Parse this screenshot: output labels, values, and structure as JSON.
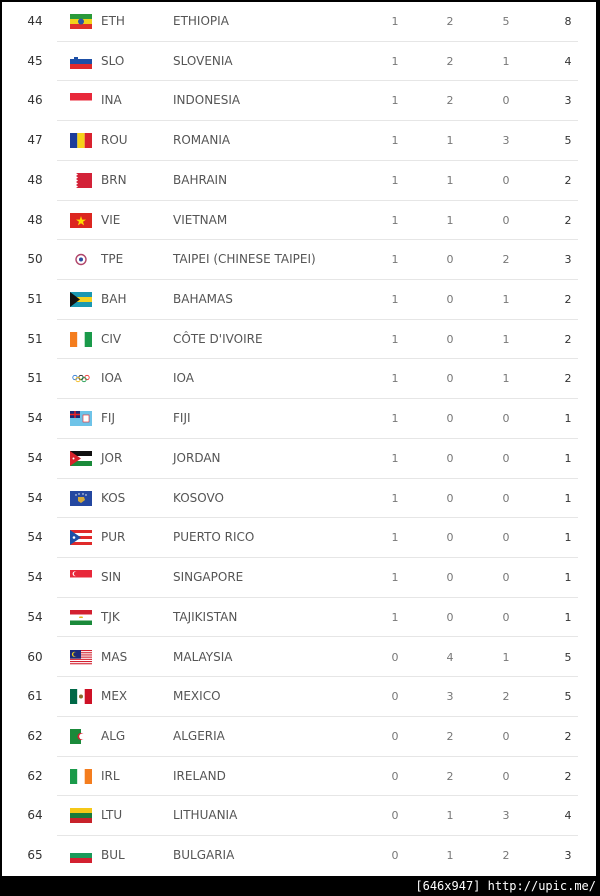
{
  "medal_table": {
    "rows": [
      {
        "rank": "44",
        "code": "ETH",
        "country": "ETHIOPIA",
        "gold": "1",
        "silver": "2",
        "bronze": "5",
        "total": "8",
        "flag": "ethiopia-flag"
      },
      {
        "rank": "45",
        "code": "SLO",
        "country": "SLOVENIA",
        "gold": "1",
        "silver": "2",
        "bronze": "1",
        "total": "4",
        "flag": "slovenia-flag"
      },
      {
        "rank": "46",
        "code": "INA",
        "country": "INDONESIA",
        "gold": "1",
        "silver": "2",
        "bronze": "0",
        "total": "3",
        "flag": "indonesia-flag"
      },
      {
        "rank": "47",
        "code": "ROU",
        "country": "ROMANIA",
        "gold": "1",
        "silver": "1",
        "bronze": "3",
        "total": "5",
        "flag": "romania-flag"
      },
      {
        "rank": "48",
        "code": "BRN",
        "country": "BAHRAIN",
        "gold": "1",
        "silver": "1",
        "bronze": "0",
        "total": "2",
        "flag": "bahrain-flag"
      },
      {
        "rank": "48",
        "code": "VIE",
        "country": "VIETNAM",
        "gold": "1",
        "silver": "1",
        "bronze": "0",
        "total": "2",
        "flag": "vietnam-flag"
      },
      {
        "rank": "50",
        "code": "TPE",
        "country": "TAIPEI (CHINESE TAIPEI)",
        "gold": "1",
        "silver": "0",
        "bronze": "2",
        "total": "3",
        "flag": "chinese-taipei-flag"
      },
      {
        "rank": "51",
        "code": "BAH",
        "country": "BAHAMAS",
        "gold": "1",
        "silver": "0",
        "bronze": "1",
        "total": "2",
        "flag": "bahamas-flag"
      },
      {
        "rank": "51",
        "code": "CIV",
        "country": "CÔTE D'IVOIRE",
        "gold": "1",
        "silver": "0",
        "bronze": "1",
        "total": "2",
        "flag": "ivory-coast-flag"
      },
      {
        "rank": "51",
        "code": "IOA",
        "country": "IOA",
        "gold": "1",
        "silver": "0",
        "bronze": "1",
        "total": "2",
        "flag": "olympic-rings-flag"
      },
      {
        "rank": "54",
        "code": "FIJ",
        "country": "FIJI",
        "gold": "1",
        "silver": "0",
        "bronze": "0",
        "total": "1",
        "flag": "fiji-flag"
      },
      {
        "rank": "54",
        "code": "JOR",
        "country": "JORDAN",
        "gold": "1",
        "silver": "0",
        "bronze": "0",
        "total": "1",
        "flag": "jordan-flag"
      },
      {
        "rank": "54",
        "code": "KOS",
        "country": "KOSOVO",
        "gold": "1",
        "silver": "0",
        "bronze": "0",
        "total": "1",
        "flag": "kosovo-flag"
      },
      {
        "rank": "54",
        "code": "PUR",
        "country": "PUERTO RICO",
        "gold": "1",
        "silver": "0",
        "bronze": "0",
        "total": "1",
        "flag": "puerto-rico-flag"
      },
      {
        "rank": "54",
        "code": "SIN",
        "country": "SINGAPORE",
        "gold": "1",
        "silver": "0",
        "bronze": "0",
        "total": "1",
        "flag": "singapore-flag"
      },
      {
        "rank": "54",
        "code": "TJK",
        "country": "TAJIKISTAN",
        "gold": "1",
        "silver": "0",
        "bronze": "0",
        "total": "1",
        "flag": "tajikistan-flag"
      },
      {
        "rank": "60",
        "code": "MAS",
        "country": "MALAYSIA",
        "gold": "0",
        "silver": "4",
        "bronze": "1",
        "total": "5",
        "flag": "malaysia-flag"
      },
      {
        "rank": "61",
        "code": "MEX",
        "country": "MEXICO",
        "gold": "0",
        "silver": "3",
        "bronze": "2",
        "total": "5",
        "flag": "mexico-flag"
      },
      {
        "rank": "62",
        "code": "ALG",
        "country": "ALGERIA",
        "gold": "0",
        "silver": "2",
        "bronze": "0",
        "total": "2",
        "flag": "algeria-flag"
      },
      {
        "rank": "62",
        "code": "IRL",
        "country": "IRELAND",
        "gold": "0",
        "silver": "2",
        "bronze": "0",
        "total": "2",
        "flag": "ireland-flag"
      },
      {
        "rank": "64",
        "code": "LTU",
        "country": "LITHUANIA",
        "gold": "0",
        "silver": "1",
        "bronze": "3",
        "total": "4",
        "flag": "lithuania-flag"
      },
      {
        "rank": "65",
        "code": "BUL",
        "country": "BULGARIA",
        "gold": "0",
        "silver": "1",
        "bronze": "2",
        "total": "3",
        "flag": "bulgaria-flag"
      }
    ]
  },
  "footer": {
    "watermark": "[646x947] http://upic.me/"
  }
}
